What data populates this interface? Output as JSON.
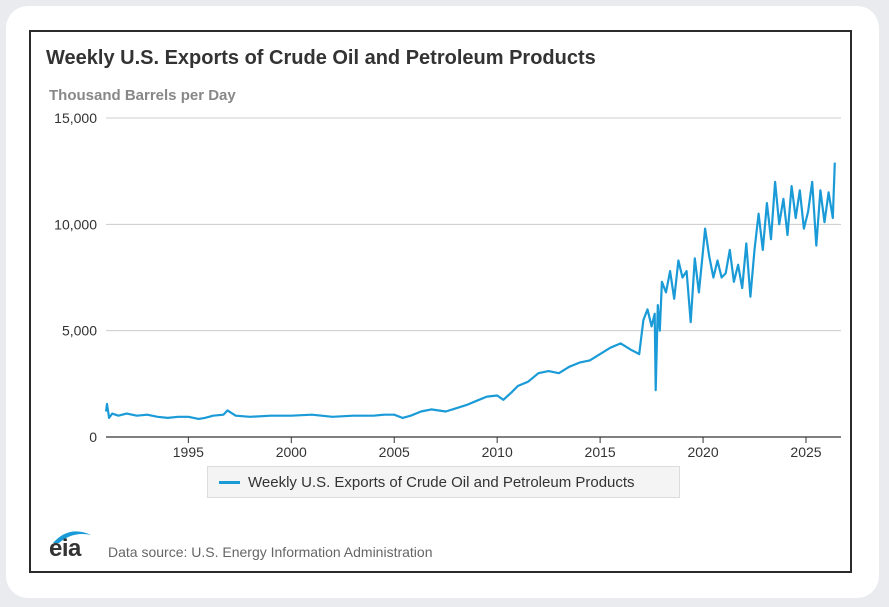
{
  "title": "Weekly U.S. Exports of Crude Oil and Petroleum Products",
  "units_label": "Thousand Barrels per Day",
  "source_text": "Data source: U.S. Energy Information Administration",
  "logo_text": "eia",
  "colors": {
    "series": "#1a9bd7",
    "logo_arc": "#1a9bd7",
    "grid": "#cccccc"
  },
  "chart_data": {
    "type": "line",
    "title": "Weekly U.S. Exports of Crude Oil and Petroleum Products",
    "ylabel": "Thousand Barrels per Day",
    "xlabel": "",
    "xlim": [
      1991,
      2026.7
    ],
    "ylim": [
      0,
      15000
    ],
    "grid": true,
    "legend_position": "bottom",
    "x_ticks": [
      1995,
      2000,
      2005,
      2010,
      2015,
      2020,
      2025
    ],
    "y_ticks": [
      0,
      5000,
      10000,
      15000
    ],
    "y_tick_labels": [
      "0",
      "5,000",
      "10,000",
      "15,000"
    ],
    "series": [
      {
        "name": "Weekly U.S. Exports of Crude Oil and Petroleum Products",
        "x": [
          1991.0,
          1991.05,
          1991.15,
          1991.3,
          1991.6,
          1992.0,
          1992.5,
          1993.0,
          1993.5,
          1994.0,
          1994.5,
          1995.0,
          1995.5,
          1995.8,
          1996.2,
          1996.7,
          1996.9,
          1997.3,
          1998.0,
          1999.0,
          2000.0,
          2001.0,
          2002.0,
          2003.0,
          2004.0,
          2004.5,
          2005.0,
          2005.4,
          2005.8,
          2006.3,
          2006.8,
          2007.5,
          2008.0,
          2008.5,
          2009.0,
          2009.5,
          2010.0,
          2010.3,
          2010.7,
          2011.0,
          2011.5,
          2012.0,
          2012.5,
          2013.0,
          2013.5,
          2014.0,
          2014.5,
          2015.0,
          2015.5,
          2016.0,
          2016.5,
          2016.9,
          2017.1,
          2017.3,
          2017.5,
          2017.65,
          2017.7,
          2017.8,
          2017.9,
          2018.0,
          2018.2,
          2018.4,
          2018.6,
          2018.8,
          2019.0,
          2019.2,
          2019.4,
          2019.6,
          2019.8,
          2020.0,
          2020.1,
          2020.3,
          2020.5,
          2020.7,
          2020.9,
          2021.1,
          2021.3,
          2021.5,
          2021.7,
          2021.9,
          2022.1,
          2022.3,
          2022.5,
          2022.7,
          2022.9,
          2023.1,
          2023.3,
          2023.5,
          2023.7,
          2023.9,
          2024.1,
          2024.3,
          2024.5,
          2024.7,
          2024.9,
          2025.1,
          2025.3,
          2025.5,
          2025.7,
          2025.9,
          2026.1,
          2026.3,
          2026.4
        ],
        "values": [
          1200,
          1550,
          900,
          1100,
          1000,
          1100,
          1000,
          1050,
          950,
          900,
          950,
          950,
          850,
          900,
          1000,
          1050,
          1250,
          1000,
          950,
          1000,
          1000,
          1050,
          950,
          1000,
          1000,
          1050,
          1050,
          900,
          1000,
          1200,
          1300,
          1200,
          1350,
          1500,
          1700,
          1900,
          1950,
          1750,
          2100,
          2400,
          2600,
          3000,
          3100,
          3000,
          3300,
          3500,
          3600,
          3900,
          4200,
          4400,
          4100,
          3900,
          5500,
          6000,
          5200,
          5800,
          2200,
          6200,
          5000,
          7300,
          6800,
          7800,
          6500,
          8300,
          7500,
          7800,
          5400,
          8400,
          6800,
          8800,
          9800,
          8500,
          7500,
          8300,
          7500,
          7700,
          8800,
          7300,
          8100,
          7000,
          9100,
          6600,
          8800,
          10500,
          8800,
          11000,
          9300,
          12000,
          10000,
          11200,
          9500,
          11800,
          10300,
          11600,
          9800,
          10600,
          12000,
          9000,
          11600,
          10100,
          11500,
          10300,
          12900
        ]
      }
    ]
  }
}
